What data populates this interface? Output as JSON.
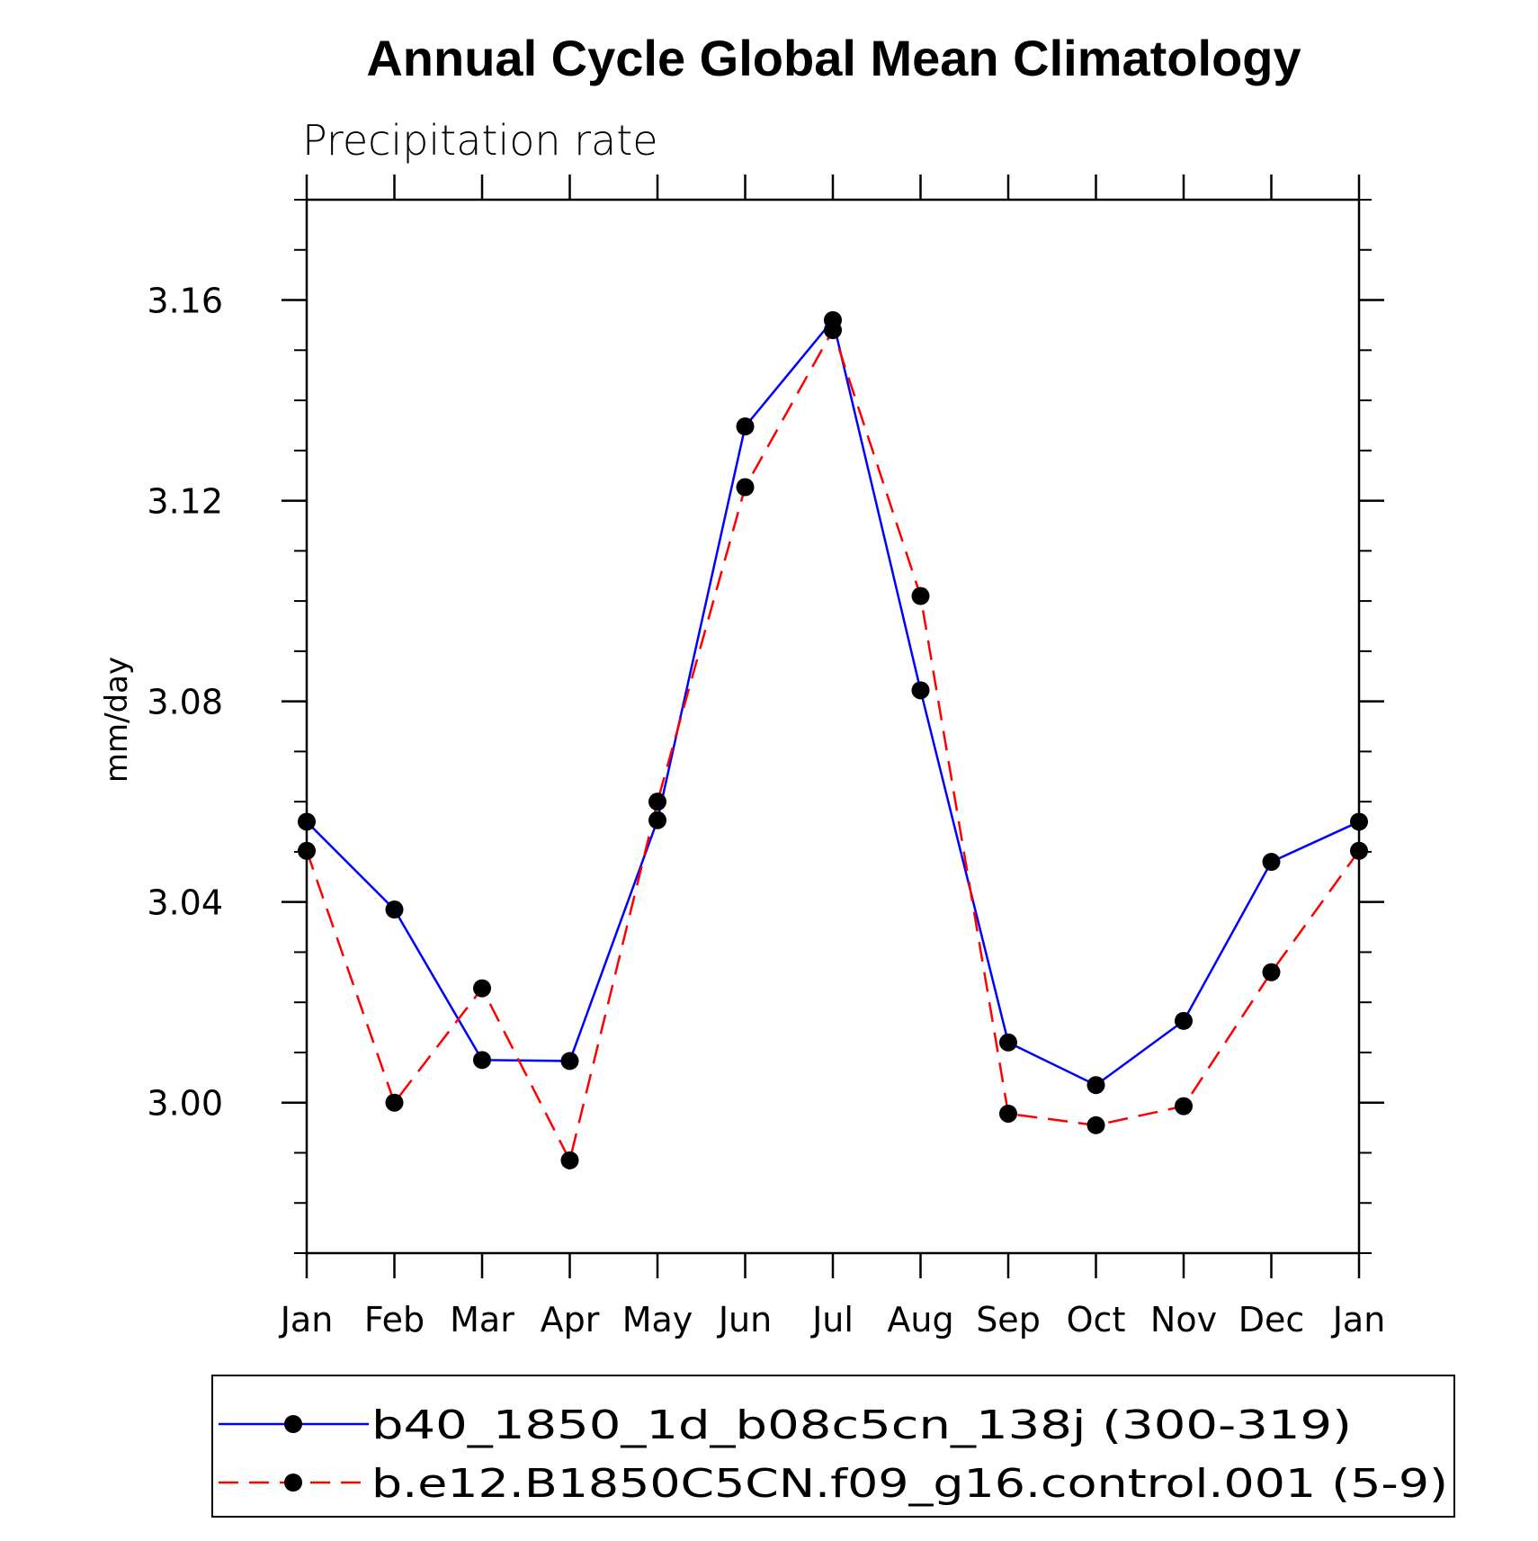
{
  "chart_data": {
    "type": "line",
    "title": "Annual Cycle Global Mean Climatology",
    "subtitle": "Precipitation rate",
    "xlabel": "",
    "ylabel": "mm/day",
    "categories": [
      "Jan",
      "Feb",
      "Mar",
      "Apr",
      "May",
      "Jun",
      "Jul",
      "Aug",
      "Sep",
      "Oct",
      "Nov",
      "Dec",
      "Jan"
    ],
    "ylim": [
      2.97,
      3.18
    ],
    "yticks_major": [
      3.0,
      3.04,
      3.08,
      3.12,
      3.16
    ],
    "ytick_labels": [
      "3.00",
      "3.04",
      "3.08",
      "3.12",
      "3.16"
    ],
    "ytick_minor_step": 0.01,
    "series": [
      {
        "name": "b40_1850_1d_b08c5cn_138j (300-319)",
        "color": "#0000ff",
        "dash": "solid",
        "marker": "filled-circle",
        "values": [
          3.056,
          3.0385,
          3.0085,
          3.0083,
          3.0563,
          3.1348,
          3.156,
          3.0822,
          3.012,
          3.0035,
          3.0163,
          3.048,
          3.056
        ]
      },
      {
        "name": "b.e12.B1850C5CN.f09_g16.control.001 (5-9)",
        "color": "#ff0000",
        "dash": "dashed",
        "marker": "filled-circle",
        "values": [
          3.0502,
          3.0,
          3.0228,
          2.9885,
          3.06,
          3.1227,
          3.154,
          3.101,
          2.9978,
          2.9955,
          2.9993,
          3.026,
          3.0502
        ]
      }
    ],
    "legend_position": "bottom",
    "grid": false
  }
}
